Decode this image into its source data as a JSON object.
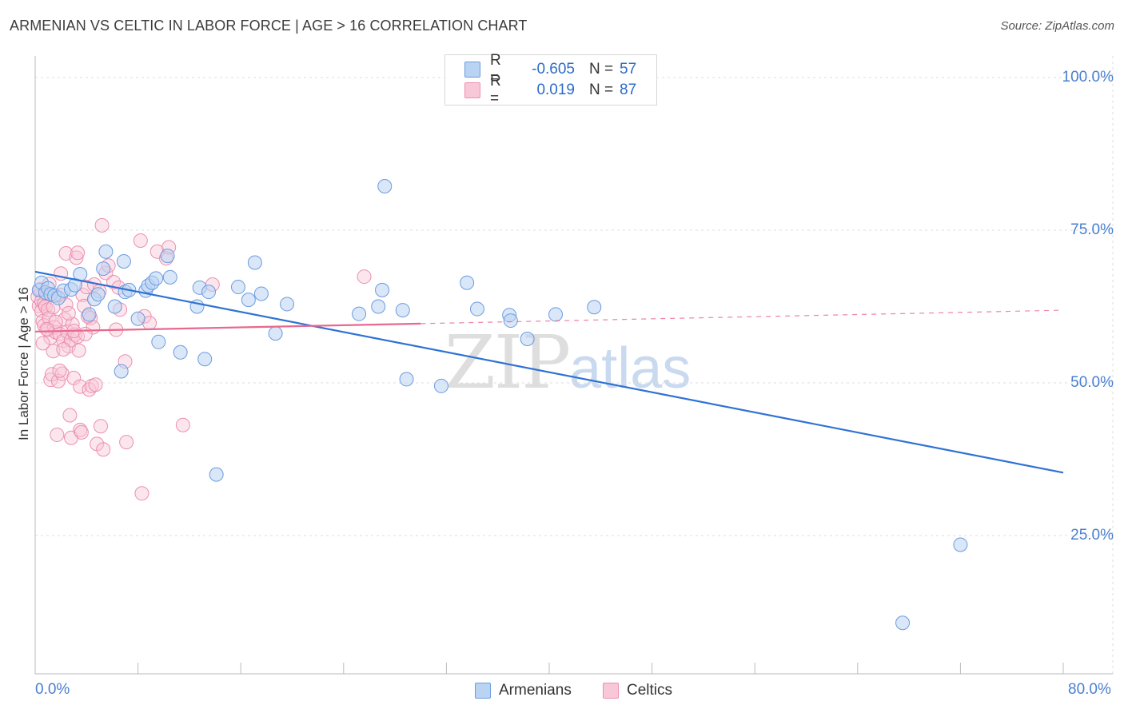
{
  "header": {
    "title": "ARMENIAN VS CELTIC IN LABOR FORCE | AGE > 16 CORRELATION CHART",
    "source": "Source: ZipAtlas.com"
  },
  "watermark": {
    "zip": "ZIP",
    "atlas": "atlas"
  },
  "legend": {
    "rows": [
      {
        "r_label": "R =",
        "r_value": "-0.605",
        "n_label": "N =",
        "n_value": "57"
      },
      {
        "r_label": "R =",
        "r_value": "0.019",
        "n_label": "N =",
        "n_value": "87"
      }
    ],
    "bottom": [
      "Armenians",
      "Celtics"
    ]
  },
  "colors": {
    "armenian_fill": "#b9d3f2",
    "armenian_stroke": "#6c9be0",
    "armenian_line": "#2f72d4",
    "celtic_fill": "#f8c8d8",
    "celtic_stroke": "#ec8fb0",
    "celtic_line": "#e8688e",
    "axis_label": "#4a7fd0",
    "grid": "#dedede"
  },
  "chart_data": {
    "type": "scatter",
    "title": "ARMENIAN VS CELTIC IN LABOR FORCE | AGE > 16 CORRELATION CHART",
    "ylabel": "In Labor Force | Age > 16",
    "xlabel": "",
    "xlim": [
      0,
      80
    ],
    "ylim": [
      0,
      103
    ],
    "x_tick_labels": [
      "0.0%",
      "80.0%"
    ],
    "y_tick_labels": [
      "100.0%",
      "75.0%",
      "50.0%",
      "25.0%"
    ],
    "y_ticks": [
      100,
      75,
      50,
      25
    ],
    "x_ticks": [
      0,
      8,
      16,
      24,
      32,
      40,
      48,
      56,
      64,
      72,
      80
    ],
    "grid": "horizontal dashed",
    "legend_position": "top-center",
    "series": [
      {
        "name": "Armenians",
        "r": -0.605,
        "n": 57,
        "trend": {
          "x": [
            0,
            80
          ],
          "y": [
            68.2,
            35.3
          ]
        },
        "points": [
          [
            0.3,
            65.2
          ],
          [
            0.5,
            66.4
          ],
          [
            0.8,
            64.8
          ],
          [
            1.0,
            65.5
          ],
          [
            1.2,
            64.5
          ],
          [
            1.5,
            64.3
          ],
          [
            1.8,
            63.9
          ],
          [
            2.2,
            65.1
          ],
          [
            2.8,
            65.3
          ],
          [
            3.1,
            66.0
          ],
          [
            3.5,
            67.8
          ],
          [
            4.2,
            61.2
          ],
          [
            4.6,
            63.7
          ],
          [
            4.9,
            64.5
          ],
          [
            5.3,
            68.7
          ],
          [
            5.5,
            71.5
          ],
          [
            6.2,
            62.5
          ],
          [
            6.7,
            51.9
          ],
          [
            6.9,
            69.9
          ],
          [
            7.0,
            64.9
          ],
          [
            7.3,
            65.2
          ],
          [
            8.0,
            60.5
          ],
          [
            8.6,
            65.1
          ],
          [
            8.8,
            65.9
          ],
          [
            9.1,
            66.4
          ],
          [
            9.4,
            67.1
          ],
          [
            9.6,
            56.7
          ],
          [
            10.3,
            70.8
          ],
          [
            10.5,
            67.3
          ],
          [
            11.3,
            55.0
          ],
          [
            12.6,
            62.5
          ],
          [
            12.8,
            65.6
          ],
          [
            13.2,
            53.9
          ],
          [
            13.5,
            64.9
          ],
          [
            14.1,
            35.0
          ],
          [
            15.8,
            65.7
          ],
          [
            16.6,
            63.6
          ],
          [
            17.1,
            69.7
          ],
          [
            17.6,
            64.6
          ],
          [
            18.7,
            58.1
          ],
          [
            19.6,
            62.9
          ],
          [
            25.2,
            61.3
          ],
          [
            26.7,
            62.5
          ],
          [
            27.0,
            65.2
          ],
          [
            27.2,
            82.2
          ],
          [
            28.6,
            61.9
          ],
          [
            28.9,
            50.6
          ],
          [
            31.6,
            49.5
          ],
          [
            33.6,
            66.4
          ],
          [
            34.4,
            62.1
          ],
          [
            36.9,
            61.1
          ],
          [
            37.0,
            60.2
          ],
          [
            38.3,
            57.2
          ],
          [
            40.5,
            61.2
          ],
          [
            43.5,
            62.4
          ],
          [
            72.0,
            23.5
          ],
          [
            67.5,
            10.7
          ]
        ]
      },
      {
        "name": "Celtics",
        "r": 0.019,
        "n": 87,
        "trend": {
          "x": [
            0,
            30
          ],
          "y": [
            58.4,
            59.7
          ]
        },
        "trend_dashed": {
          "x": [
            30,
            80
          ],
          "y": [
            59.7,
            61.9
          ]
        },
        "points": [
          [
            0.2,
            64.1
          ],
          [
            0.3,
            62.6
          ],
          [
            0.4,
            65.3
          ],
          [
            0.5,
            63.4
          ],
          [
            0.5,
            61.8
          ],
          [
            0.6,
            60.1
          ],
          [
            0.7,
            59.4
          ],
          [
            0.7,
            63.0
          ],
          [
            0.8,
            62.5
          ],
          [
            0.9,
            64.6
          ],
          [
            1.0,
            58.7
          ],
          [
            1.0,
            62.0
          ],
          [
            1.1,
            60.6
          ],
          [
            1.2,
            57.4
          ],
          [
            1.2,
            50.5
          ],
          [
            1.3,
            51.4
          ],
          [
            1.4,
            55.2
          ],
          [
            1.4,
            62.4
          ],
          [
            1.5,
            59.1
          ],
          [
            1.6,
            58.3
          ],
          [
            1.7,
            41.5
          ],
          [
            1.8,
            50.3
          ],
          [
            1.9,
            58.0
          ],
          [
            2.0,
            67.9
          ],
          [
            2.0,
            64.4
          ],
          [
            2.1,
            51.5
          ],
          [
            2.2,
            56.9
          ],
          [
            2.3,
            60.4
          ],
          [
            2.4,
            71.2
          ],
          [
            2.5,
            58.4
          ],
          [
            2.6,
            56.0
          ],
          [
            2.7,
            44.7
          ],
          [
            2.8,
            57.0
          ],
          [
            2.8,
            41.0
          ],
          [
            2.9,
            59.6
          ],
          [
            3.0,
            50.8
          ],
          [
            3.1,
            57.9
          ],
          [
            3.2,
            70.5
          ],
          [
            3.3,
            71.3
          ],
          [
            3.3,
            57.6
          ],
          [
            3.4,
            55.3
          ],
          [
            3.5,
            49.4
          ],
          [
            3.5,
            42.3
          ],
          [
            3.6,
            41.9
          ],
          [
            3.7,
            64.4
          ],
          [
            3.8,
            62.6
          ],
          [
            4.0,
            65.7
          ],
          [
            4.2,
            48.9
          ],
          [
            4.3,
            60.6
          ],
          [
            4.4,
            49.5
          ],
          [
            4.5,
            59.1
          ],
          [
            4.6,
            66.1
          ],
          [
            4.7,
            49.7
          ],
          [
            4.8,
            40.0
          ],
          [
            5.0,
            65.0
          ],
          [
            5.1,
            42.9
          ],
          [
            5.2,
            75.8
          ],
          [
            5.3,
            39.1
          ],
          [
            5.5,
            68.0
          ],
          [
            5.7,
            69.2
          ],
          [
            6.1,
            66.5
          ],
          [
            6.3,
            58.7
          ],
          [
            6.5,
            65.6
          ],
          [
            7.0,
            53.5
          ],
          [
            7.1,
            40.3
          ],
          [
            8.2,
            73.3
          ],
          [
            8.3,
            31.9
          ],
          [
            8.5,
            60.9
          ],
          [
            8.9,
            59.8
          ],
          [
            9.5,
            71.5
          ],
          [
            10.2,
            70.4
          ],
          [
            10.4,
            72.2
          ],
          [
            11.5,
            43.1
          ],
          [
            13.8,
            66.1
          ],
          [
            25.6,
            67.4
          ],
          [
            1.1,
            66.2
          ],
          [
            2.4,
            62.8
          ],
          [
            3.0,
            58.5
          ],
          [
            1.6,
            60.0
          ],
          [
            0.9,
            58.8
          ],
          [
            4.1,
            60.9
          ],
          [
            2.2,
            55.5
          ],
          [
            1.9,
            52.0
          ],
          [
            3.9,
            58.0
          ],
          [
            2.6,
            61.4
          ],
          [
            0.6,
            56.5
          ],
          [
            6.6,
            62.0
          ]
        ]
      }
    ]
  }
}
